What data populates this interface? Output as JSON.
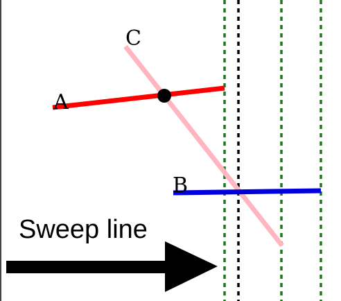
{
  "diagram": {
    "segments": [
      {
        "id": "A",
        "label": "A",
        "color": "#ff0000"
      },
      {
        "id": "B",
        "label": "B",
        "color": "#0000dd"
      },
      {
        "id": "C",
        "label": "C",
        "color": "#ffb6c1"
      }
    ],
    "sweep": {
      "label": "Sweep line",
      "current_line_color": "#000000",
      "event_line_color": "#1a7a1a",
      "arrow_color": "#000000"
    },
    "intersection_point_color": "#000000"
  }
}
